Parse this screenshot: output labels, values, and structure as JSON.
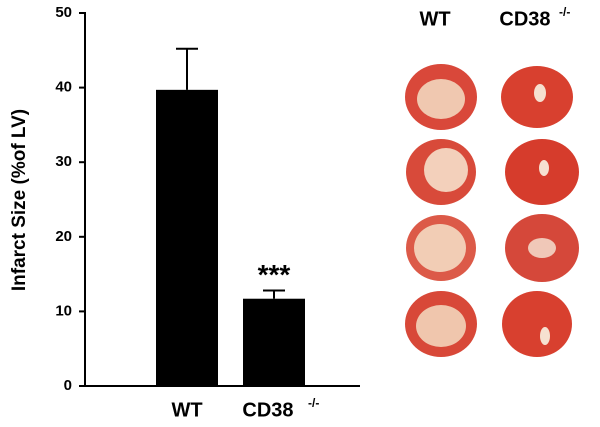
{
  "chart_data": {
    "type": "bar",
    "y_label": "Infarct Size (%of LV)",
    "categories": [
      "WT",
      "CD38"
    ],
    "superscript": "-/-",
    "values": [
      39.7,
      11.7
    ],
    "errors": [
      5.5,
      1.1
    ],
    "color": "#000000",
    "annotation": "***",
    "ylim": [
      0,
      50
    ],
    "yticks": [
      0,
      10,
      20,
      30,
      40,
      50
    ]
  }
}
